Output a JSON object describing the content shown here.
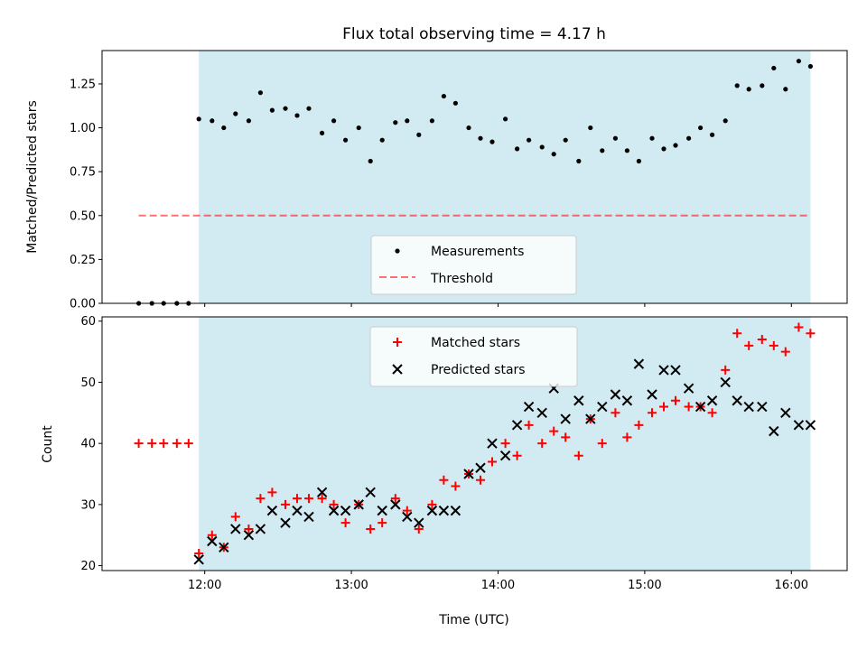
{
  "chart_data": {
    "title": "Flux total observing time = 4.17 h",
    "xlabel": "Time (UTC)",
    "x_unit": "hours UTC",
    "xlim": [
      11.3,
      16.38
    ],
    "observing_span": [
      11.96,
      16.13
    ],
    "shade_color": "#add8e6",
    "x_tick_labels": [
      {
        "v": 12,
        "label": "12:00"
      },
      {
        "v": 13,
        "label": "13:00"
      },
      {
        "v": 14,
        "label": "14:00"
      },
      {
        "v": 15,
        "label": "15:00"
      },
      {
        "v": 16,
        "label": "16:00"
      }
    ],
    "panels": [
      {
        "type": "scatter",
        "ylabel": "Matched/Predicted stars",
        "ylim": [
          0,
          1.44
        ],
        "y_ticks": [
          {
            "v": 0,
            "label": "0.00"
          },
          {
            "v": 0.25,
            "label": "0.25"
          },
          {
            "v": 0.5,
            "label": "0.50"
          },
          {
            "v": 0.75,
            "label": "0.75"
          },
          {
            "v": 1.0,
            "label": "1.00"
          },
          {
            "v": 1.25,
            "label": "1.25"
          }
        ],
        "threshold": {
          "value": 0.5,
          "x_range": [
            11.55,
            16.13
          ],
          "color": "#ff0000",
          "label": "Threshold"
        },
        "legend": {
          "position": "lower-center",
          "measurements_label": "Measurements"
        },
        "series": [
          {
            "name": "Measurements",
            "marker": "dot",
            "color": "#000000",
            "x": [
              11.55,
              11.64,
              11.72,
              11.81,
              11.89,
              11.96,
              12.05,
              12.13,
              12.21,
              12.3,
              12.38,
              12.46,
              12.55,
              12.63,
              12.71,
              12.8,
              12.88,
              12.96,
              13.05,
              13.13,
              13.21,
              13.3,
              13.38,
              13.46,
              13.55,
              13.63,
              13.71,
              13.8,
              13.88,
              13.96,
              14.05,
              14.13,
              14.21,
              14.3,
              14.38,
              14.46,
              14.55,
              14.63,
              14.71,
              14.8,
              14.88,
              14.96,
              15.05,
              15.13,
              15.21,
              15.3,
              15.38,
              15.46,
              15.55,
              15.63,
              15.71,
              15.8,
              15.88,
              15.96,
              16.05,
              16.13
            ],
            "y": [
              0,
              0,
              0,
              0,
              0,
              1.05,
              1.04,
              1.0,
              1.08,
              1.04,
              1.2,
              1.1,
              1.11,
              1.07,
              1.11,
              0.97,
              1.04,
              0.93,
              1.0,
              0.81,
              0.93,
              1.03,
              1.04,
              0.96,
              1.04,
              1.18,
              1.14,
              1.0,
              0.94,
              0.92,
              1.05,
              0.88,
              0.93,
              0.89,
              0.85,
              0.93,
              0.81,
              1.0,
              0.87,
              0.94,
              0.87,
              0.81,
              0.94,
              0.88,
              0.9,
              0.94,
              1.0,
              0.96,
              1.04,
              1.24,
              1.22,
              1.24,
              1.34,
              1.22,
              1.38,
              1.35
            ]
          }
        ]
      },
      {
        "type": "scatter",
        "ylabel": "Count",
        "ylim": [
          19.2,
          60.7
        ],
        "y_ticks": [
          {
            "v": 20,
            "label": "20"
          },
          {
            "v": 30,
            "label": "30"
          },
          {
            "v": 40,
            "label": "40"
          },
          {
            "v": 50,
            "label": "50"
          },
          {
            "v": 60,
            "label": "60"
          }
        ],
        "legend": {
          "position": "upper-center"
        },
        "series": [
          {
            "name": "Matched stars",
            "marker": "plus",
            "color": "#ff0000",
            "x": [
              11.55,
              11.64,
              11.72,
              11.81,
              11.89,
              11.96,
              12.05,
              12.13,
              12.21,
              12.3,
              12.38,
              12.46,
              12.55,
              12.63,
              12.71,
              12.8,
              12.88,
              12.96,
              13.05,
              13.13,
              13.21,
              13.3,
              13.38,
              13.46,
              13.55,
              13.63,
              13.71,
              13.8,
              13.88,
              13.96,
              14.05,
              14.13,
              14.21,
              14.3,
              14.38,
              14.46,
              14.55,
              14.63,
              14.71,
              14.8,
              14.88,
              14.96,
              15.05,
              15.13,
              15.21,
              15.3,
              15.38,
              15.46,
              15.55,
              15.63,
              15.71,
              15.8,
              15.88,
              15.96,
              16.05,
              16.13
            ],
            "y": [
              40,
              40,
              40,
              40,
              40,
              22,
              25,
              23,
              28,
              26,
              31,
              32,
              30,
              31,
              31,
              31,
              30,
              27,
              30,
              26,
              27,
              31,
              29,
              26,
              30,
              34,
              33,
              35,
              34,
              37,
              40,
              38,
              43,
              40,
              42,
              41,
              38,
              44,
              40,
              45,
              41,
              43,
              45,
              46,
              47,
              46,
              46,
              45,
              52,
              58,
              56,
              57,
              56,
              55,
              59,
              58
            ]
          },
          {
            "name": "Predicted stars",
            "marker": "x",
            "color": "#000000",
            "x": [
              11.96,
              12.05,
              12.13,
              12.21,
              12.3,
              12.38,
              12.46,
              12.55,
              12.63,
              12.71,
              12.8,
              12.88,
              12.96,
              13.05,
              13.13,
              13.21,
              13.3,
              13.38,
              13.46,
              13.55,
              13.63,
              13.71,
              13.8,
              13.88,
              13.96,
              14.05,
              14.13,
              14.21,
              14.3,
              14.38,
              14.46,
              14.55,
              14.63,
              14.71,
              14.8,
              14.88,
              14.96,
              15.05,
              15.13,
              15.21,
              15.3,
              15.38,
              15.46,
              15.55,
              15.63,
              15.71,
              15.8,
              15.88,
              15.96,
              16.05,
              16.13
            ],
            "y": [
              21,
              24,
              23,
              26,
              25,
              26,
              29,
              27,
              29,
              28,
              32,
              29,
              29,
              30,
              32,
              29,
              30,
              28,
              27,
              29,
              29,
              29,
              35,
              36,
              40,
              38,
              43,
              46,
              45,
              49,
              44,
              47,
              44,
              46,
              48,
              47,
              53,
              48,
              52,
              52,
              49,
              46,
              47,
              50,
              47,
              46,
              46,
              42,
              45,
              43,
              43
            ]
          }
        ]
      }
    ]
  }
}
